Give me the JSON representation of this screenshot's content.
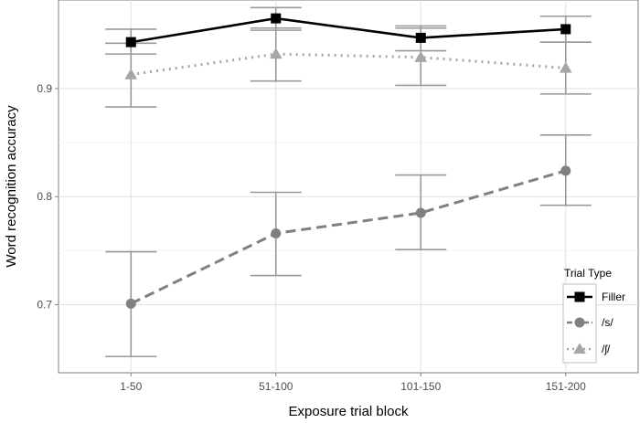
{
  "chart_data": {
    "type": "line",
    "title": "",
    "xlabel": "Exposure trial block",
    "ylabel": "Word recognition accuracy",
    "categories": [
      "1-50",
      "51-100",
      "101-150",
      "151-200"
    ],
    "ylim": [
      0.637,
      0.982
    ],
    "yticks": [
      0.7,
      0.8,
      0.9
    ],
    "ytick_labels": [
      "0.7",
      "0.8",
      "0.9"
    ],
    "grid": true,
    "legend_position": "bottom-right",
    "legend_title": "Trial Type",
    "series": [
      {
        "name": "Filler",
        "values": [
          0.943,
          0.965,
          0.947,
          0.955
        ],
        "lower": [
          0.932,
          0.954,
          0.935,
          0.943
        ],
        "upper": [
          0.955,
          0.975,
          0.958,
          0.967
        ],
        "color": "#000000",
        "marker": "square",
        "dash": "solid"
      },
      {
        "name": "/s/",
        "values": [
          0.701,
          0.766,
          0.785,
          0.824
        ],
        "lower": [
          0.652,
          0.727,
          0.751,
          0.792
        ],
        "upper": [
          0.749,
          0.804,
          0.82,
          0.857
        ],
        "color": "#808080",
        "marker": "circle",
        "dash": "dashed"
      },
      {
        "name": "/ʃ/",
        "values": [
          0.913,
          0.932,
          0.929,
          0.919
        ],
        "lower": [
          0.883,
          0.907,
          0.903,
          0.895
        ],
        "upper": [
          0.942,
          0.956,
          0.956,
          0.943
        ],
        "color": "#a6a6a6",
        "marker": "triangle",
        "dash": "dotted"
      }
    ]
  }
}
